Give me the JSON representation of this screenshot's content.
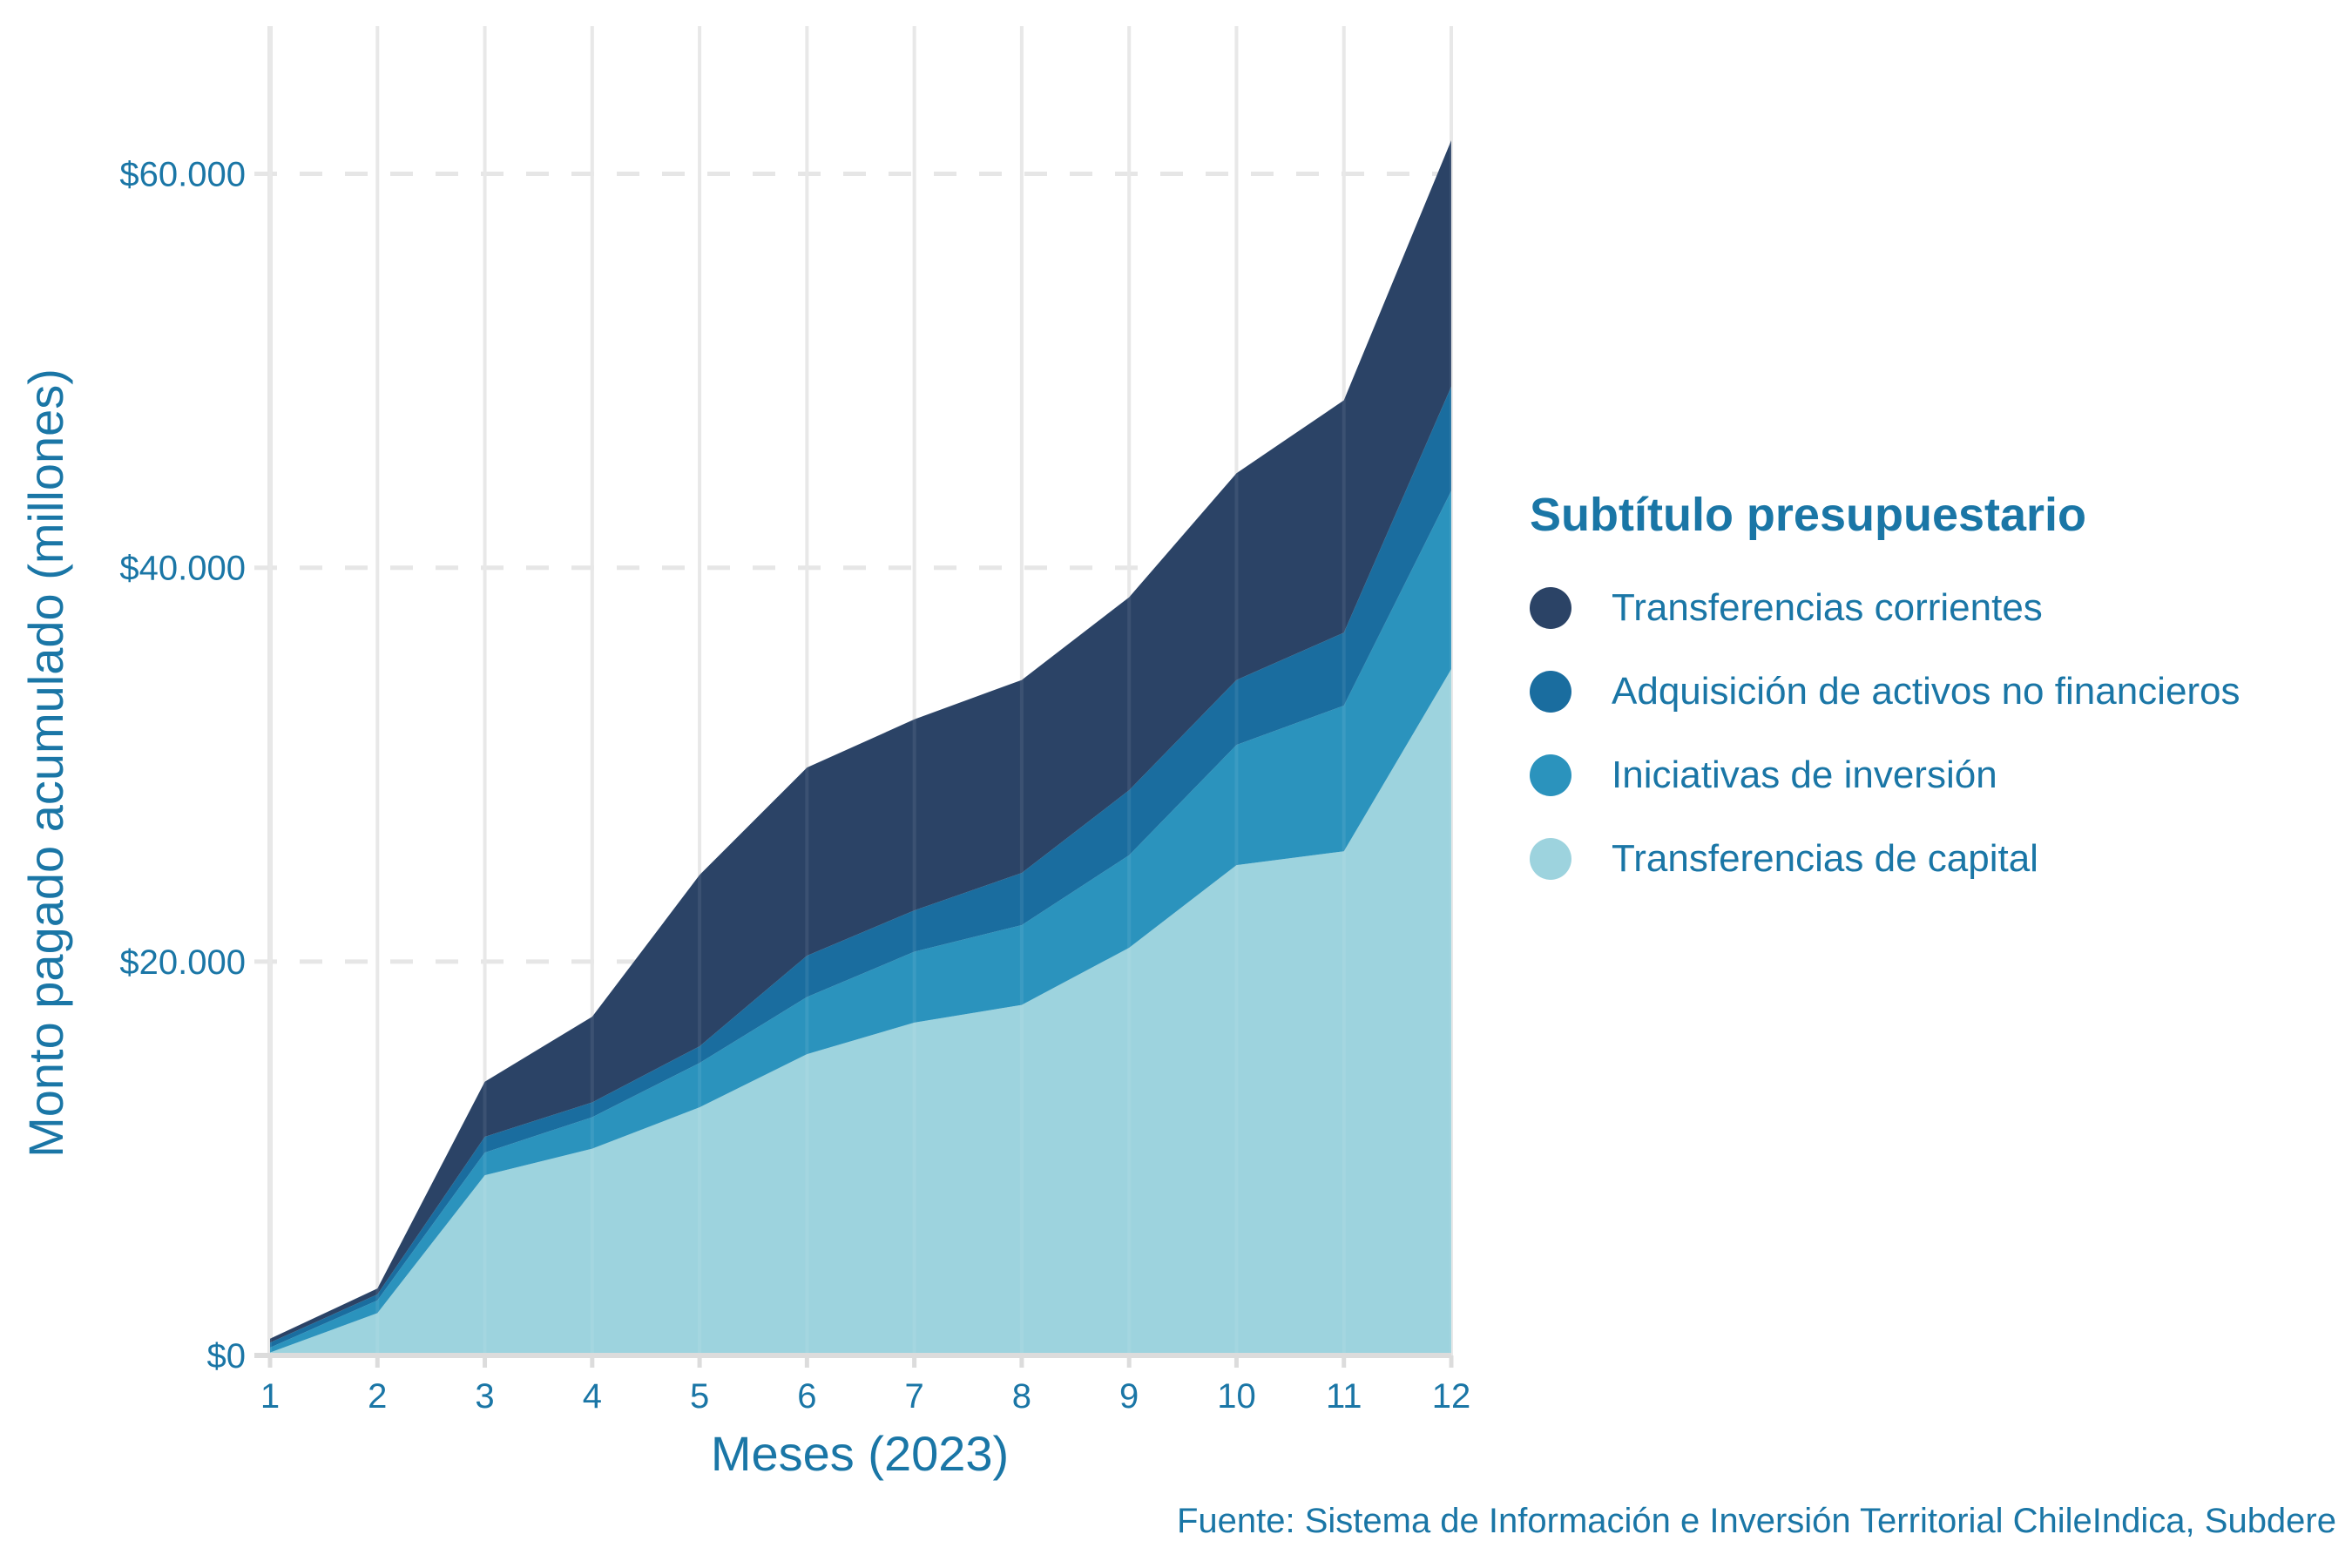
{
  "chart_data": {
    "type": "area",
    "stacked": true,
    "title": "",
    "xlabel": "Meses (2023)",
    "ylabel": "Monto pagado acumulado (millones)",
    "x": [
      1,
      2,
      3,
      4,
      5,
      6,
      7,
      8,
      9,
      10,
      11,
      12
    ],
    "x_tick_labels": [
      "1",
      "2",
      "3",
      "4",
      "5",
      "6",
      "7",
      "8",
      "9",
      "10",
      "11",
      "12"
    ],
    "y_ticks": [
      0,
      20000,
      40000,
      60000
    ],
    "y_tick_labels": [
      "$0",
      "$20.000",
      "$40.000",
      "$60.000"
    ],
    "ylim": [
      0,
      67500
    ],
    "xlim": [
      1,
      12
    ],
    "grid": true,
    "legend_title": "Subtítulo presupuestario",
    "legend_position": "right",
    "caption": "Fuente: Sistema de Información e Inversión Territorial ChileIndica, Subdere",
    "series": [
      {
        "name": "Transferencias de capital",
        "color": "#9dd3de",
        "values": [
          150,
          2150,
          9150,
          10500,
          12600,
          15300,
          16900,
          17800,
          20700,
          24900,
          25600,
          34850
        ]
      },
      {
        "name": "Iniciativas de inversión",
        "color": "#2b93bd",
        "values": [
          250,
          650,
          1150,
          1600,
          2250,
          2900,
          3600,
          4050,
          4700,
          6100,
          7400,
          9050
        ]
      },
      {
        "name": "Adquisición de activos no financieros",
        "color": "#1a6d9f",
        "values": [
          250,
          300,
          800,
          750,
          850,
          2100,
          2100,
          2650,
          3300,
          3300,
          3700,
          5300
        ]
      },
      {
        "name": "Transferencias corrientes",
        "color": "#2b4366",
        "values": [
          200,
          300,
          2800,
          4350,
          8700,
          9550,
          9700,
          9800,
          9800,
          10500,
          11800,
          12500
        ]
      }
    ]
  }
}
